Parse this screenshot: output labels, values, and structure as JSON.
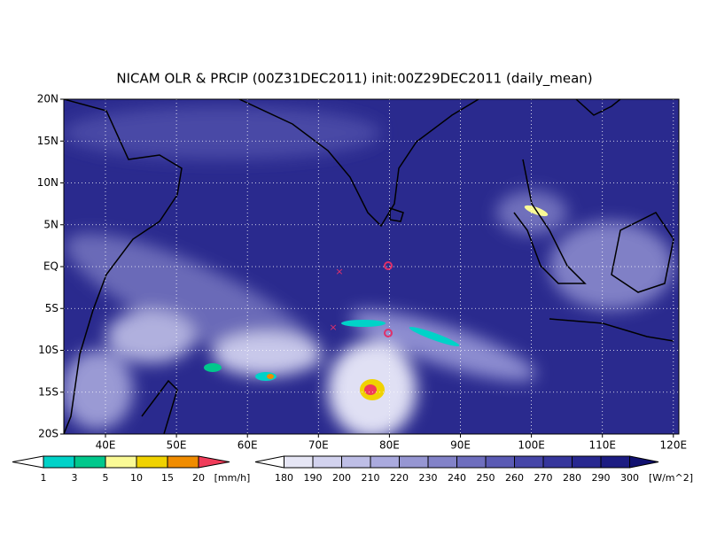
{
  "title": "NICAM OLR & PRCIP (00Z31DEC2011) init:00Z29DEC2011 (daily_mean)",
  "lat_labels": [
    "20N",
    "15N",
    "10N",
    "5N",
    "EQ",
    "5S",
    "10S",
    "15S",
    "20S"
  ],
  "lon_labels": [
    "40E",
    "50E",
    "60E",
    "70E",
    "80E",
    "90E",
    "100E",
    "110E",
    "120E"
  ],
  "precip_colorbar": {
    "levels": [
      "1",
      "3",
      "5",
      "10",
      "15",
      "20"
    ],
    "unit": "[mm/h]",
    "colors": [
      "#ffffff",
      "#00d2c8",
      "#00c88c",
      "#fafa96",
      "#f0d200",
      "#f08c00",
      "#f03c5a"
    ]
  },
  "olr_colorbar": {
    "levels": [
      "180",
      "190",
      "200",
      "210",
      "220",
      "230",
      "240",
      "250",
      "260",
      "270",
      "280",
      "290",
      "300"
    ],
    "unit": "[W/m^2]",
    "colors": [
      "#ffffff",
      "#e6e6f5",
      "#d2d2ee",
      "#bebee6",
      "#aaaade",
      "#9696d2",
      "#8282c8",
      "#6e6ebe",
      "#5a5ab4",
      "#4646a8",
      "#36369c",
      "#282890",
      "#1c1c82",
      "#101070"
    ]
  }
}
